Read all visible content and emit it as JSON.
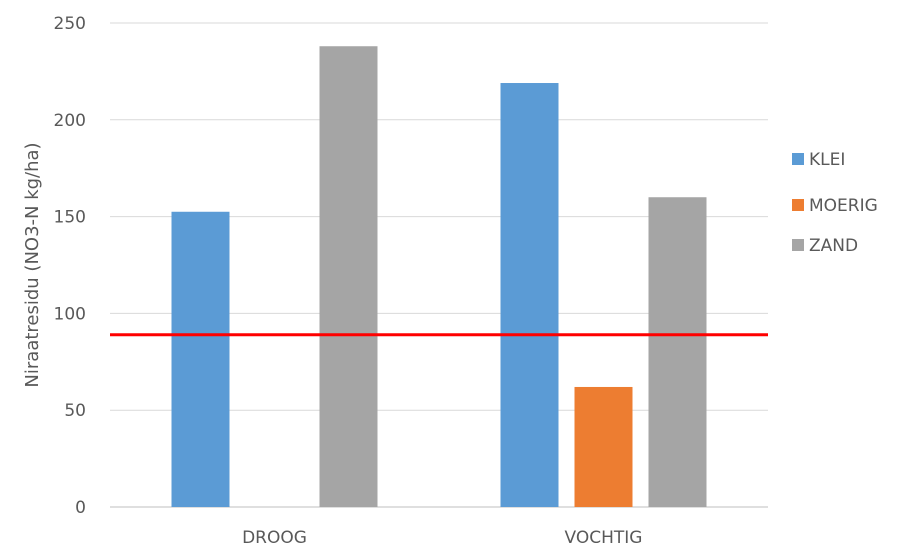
{
  "chart_data": {
    "type": "bar",
    "categories": [
      "DROOG",
      "VOCHTIG"
    ],
    "series": [
      {
        "name": "KLEI",
        "color": "#5B9BD5",
        "values": [
          152.5,
          219
        ]
      },
      {
        "name": "MOERIG",
        "color": "#ED7D31",
        "values": [
          0,
          62
        ]
      },
      {
        "name": "ZAND",
        "color": "#A5A5A5",
        "values": [
          238,
          160
        ]
      }
    ],
    "threshold": {
      "value": 89,
      "color": "#FF0000"
    },
    "ylabel": "Niraatresidu (NO3-N kg/ha)",
    "xlabel": "",
    "ylim": [
      0,
      250
    ],
    "yticks": [
      0,
      50,
      100,
      150,
      200,
      250
    ],
    "grid": true,
    "legend_position": "right"
  }
}
